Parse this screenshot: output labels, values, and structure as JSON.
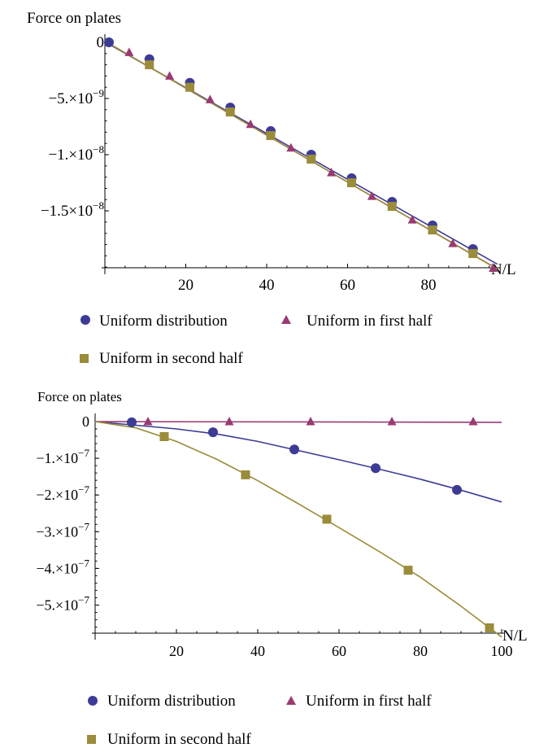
{
  "chart_data": [
    {
      "type": "scatter",
      "ylabel": "Force on plates",
      "xlabel": "N/L",
      "x_ticks": [
        "20",
        "40",
        "60",
        "80"
      ],
      "y_ticks": [
        {
          "value": 0,
          "mant": "0",
          "exp": ""
        },
        {
          "value": -5e-09,
          "mant": "−5.×10",
          "exp": "−9"
        },
        {
          "value": -1e-08,
          "mant": "−1.×10",
          "exp": "−8"
        },
        {
          "value": -1.5e-08,
          "mant": "−1.5×10",
          "exp": "−8"
        }
      ],
      "xlim": [
        0,
        97
      ],
      "ylim": [
        -2.05e-08,
        0
      ],
      "series": [
        {
          "name": "Uniform distribution",
          "marker": "circle",
          "color": "#3c3c96",
          "x": [
            1,
            11,
            21,
            31,
            41,
            51,
            61,
            71,
            81,
            91
          ],
          "y": [
            0,
            -1.5e-09,
            -3.6e-09,
            -5.8e-09,
            -7.9e-09,
            -1e-08,
            -1.21e-08,
            -1.42e-08,
            -1.63e-08,
            -1.84e-08
          ],
          "fit": {
            "type": "linear",
            "x0": 0,
            "y0": 4e-11,
            "slope": -2.04e-10
          }
        },
        {
          "name": "Uniform in first half",
          "marker": "triangle",
          "color": "#9a3a73",
          "x": [
            6,
            16,
            26,
            36,
            46,
            56,
            66,
            76,
            86,
            96
          ],
          "y": [
            -9e-10,
            -3e-09,
            -5.1e-09,
            -7.3e-09,
            -9.4e-09,
            -1.16e-08,
            -1.37e-08,
            -1.58e-08,
            -1.79e-08,
            -2.01e-08
          ],
          "fit": {
            "type": "linear",
            "x0": 0,
            "y0": 1e-10,
            "slope": -2.09e-10
          }
        },
        {
          "name": "Uniform in second half",
          "marker": "square",
          "color": "#9a8c3a",
          "x": [
            11,
            21,
            31,
            41,
            51,
            61,
            71,
            81,
            91
          ],
          "y": [
            -2e-09,
            -4e-09,
            -6.2e-09,
            -8.3e-09,
            -1.04e-08,
            -1.25e-08,
            -1.46e-08,
            -1.67e-08,
            -1.88e-08
          ],
          "fit": {
            "type": "linear",
            "x0": 0,
            "y0": 1e-10,
            "slope": -2.09e-10
          }
        }
      ]
    },
    {
      "type": "scatter",
      "ylabel": "Force on plates",
      "xlabel": "N/L",
      "x_ticks": [
        "20",
        "40",
        "60",
        "80",
        "100"
      ],
      "y_ticks": [
        {
          "value": 0,
          "mant": "0",
          "exp": ""
        },
        {
          "value": -1e-07,
          "mant": "−1.×10",
          "exp": "−7"
        },
        {
          "value": -2e-07,
          "mant": "−2.×10",
          "exp": "−7"
        },
        {
          "value": -3e-07,
          "mant": "−3.×10",
          "exp": "−7"
        },
        {
          "value": -4e-07,
          "mant": "−4.×10",
          "exp": "−7"
        },
        {
          "value": -5e-07,
          "mant": "−5.×10",
          "exp": "−7"
        }
      ],
      "xlim": [
        0,
        100
      ],
      "ylim": [
        -5.75e-07,
        0
      ],
      "series": [
        {
          "name": "Uniform distribution",
          "marker": "circle",
          "color": "#3c3c96",
          "x": [
            9,
            29,
            49,
            69,
            89
          ],
          "y": [
            -2e-09,
            -2.9e-08,
            -7.6e-08,
            -1.27e-07,
            -1.86e-07
          ],
          "fit": {
            "type": "curve",
            "x": [
              0,
              10,
              20,
              30,
              40,
              50,
              60,
              70,
              80,
              90,
              100
            ],
            "y": [
              0,
              -1e-08,
              -2e-08,
              -3.4e-08,
              -5.4e-08,
              -7.9e-08,
              -1.04e-07,
              -1.3e-07,
              -1.57e-07,
              -1.87e-07,
              -2.19e-07
            ]
          }
        },
        {
          "name": "Uniform in first half",
          "marker": "triangle",
          "color": "#9a3a73",
          "x": [
            13,
            33,
            53,
            73,
            93
          ],
          "y": [
            0,
            0,
            0,
            0,
            0
          ],
          "fit": {
            "type": "curve",
            "x": [
              0,
              100
            ],
            "y": [
              0,
              -2e-09
            ]
          }
        },
        {
          "name": "Uniform in second half",
          "marker": "square",
          "color": "#9a8c3a",
          "x": [
            17,
            37,
            57,
            77,
            97
          ],
          "y": [
            -4.1e-08,
            -1.45e-07,
            -2.66e-07,
            -4.05e-07,
            -5.62e-07
          ],
          "fit": {
            "type": "curve",
            "x": [
              0,
              10,
              20,
              30,
              40,
              50,
              60,
              70,
              80,
              90,
              100
            ],
            "y": [
              0,
              -1.7e-08,
              -5.4e-08,
              -1.03e-07,
              -1.61e-07,
              -2.24e-07,
              -2.89e-07,
              -3.55e-07,
              -4.24e-07,
              -5.03e-07,
              -5.87e-07
            ]
          }
        }
      ]
    }
  ],
  "legend": {
    "item1": "Uniform distribution",
    "item2": "Uniform in first half",
    "item3": "Uniform in second half"
  }
}
